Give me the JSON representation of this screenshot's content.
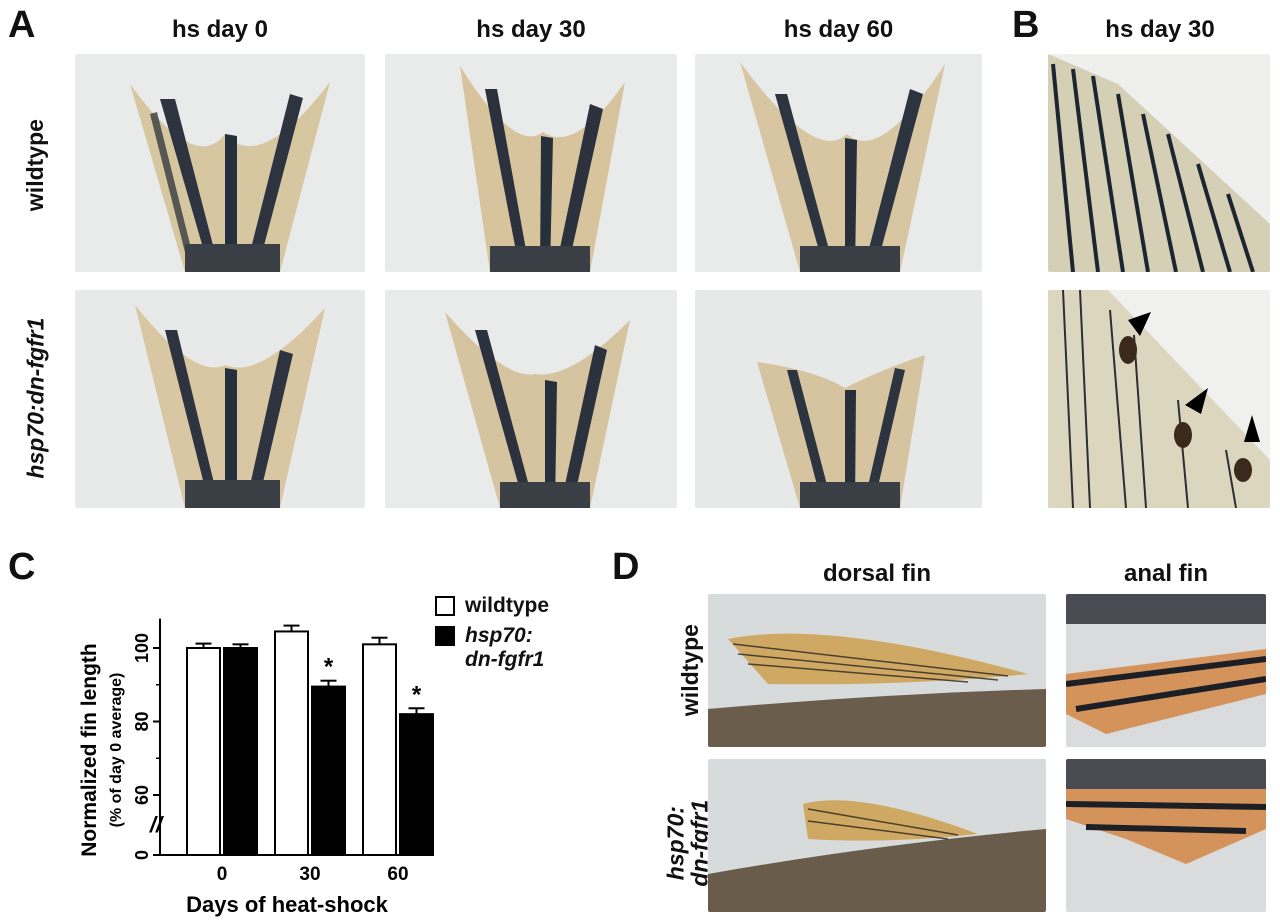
{
  "panels": {
    "A": {
      "letter": "A",
      "columns": [
        "hs day 0",
        "hs day 30",
        "hs day 60"
      ],
      "rows": [
        "wildtype",
        "hsp70:dn-fgfr1"
      ]
    },
    "B": {
      "letter": "B",
      "column": "hs day 30"
    },
    "C": {
      "letter": "C"
    },
    "D": {
      "letter": "D",
      "columns": [
        "dorsal fin",
        "anal fin"
      ],
      "rows": {
        "wildtype": "wildtype",
        "mutant_line1": "hsp70:",
        "mutant_line2": "dn-fgfr1"
      }
    }
  },
  "chart_data": {
    "type": "bar",
    "ylabel": "Normalized fin length",
    "ylabel_sub": "(% of day 0 average)",
    "xlabel": "Days of heat-shock",
    "categories": [
      "0",
      "30",
      "60"
    ],
    "yticks": [
      "0",
      "60",
      "80",
      "100"
    ],
    "ylim": [
      60,
      108
    ],
    "axis_break": "//",
    "series": [
      {
        "name": "wildtype",
        "fill": "#ffffff",
        "values": [
          100,
          104.5,
          101
        ],
        "errors": [
          1.2,
          1.6,
          1.8
        ]
      },
      {
        "name": "hsp70: dn-fgfr1",
        "fill": "#000000",
        "values": [
          100,
          89.5,
          82
        ],
        "errors": [
          1.0,
          1.6,
          1.6
        ]
      }
    ],
    "significance": [
      {
        "category": "30",
        "series": "hsp70: dn-fgfr1",
        "mark": "*"
      },
      {
        "category": "60",
        "series": "hsp70: dn-fgfr1",
        "mark": "*"
      }
    ],
    "legend": {
      "placement": "top-right",
      "entries": [
        {
          "label": "wildtype",
          "fill": "#ffffff"
        },
        {
          "label_line1": "hsp70:",
          "label_line2": "dn-fgfr1",
          "fill": "#000000"
        }
      ]
    }
  }
}
